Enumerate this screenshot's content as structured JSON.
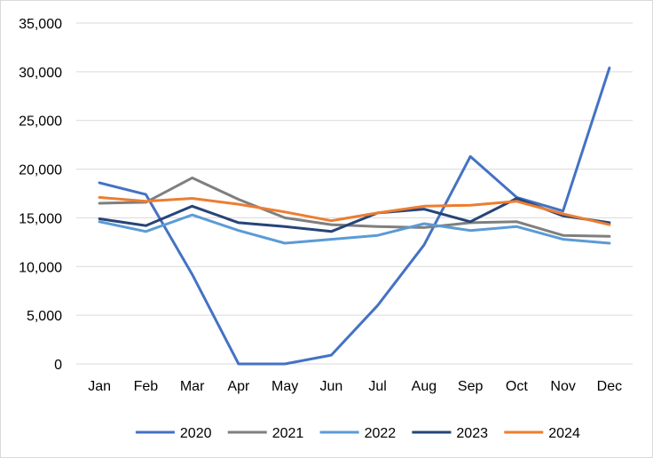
{
  "chart_data": {
    "type": "line",
    "title": "",
    "xlabel": "",
    "ylabel": "",
    "categories": [
      "Jan",
      "Feb",
      "Mar",
      "Apr",
      "May",
      "Jun",
      "Jul",
      "Aug",
      "Sep",
      "Oct",
      "Nov",
      "Dec"
    ],
    "ylim": [
      0,
      35000
    ],
    "yticks": [
      0,
      5000,
      10000,
      15000,
      20000,
      25000,
      30000,
      35000
    ],
    "ytick_labels": [
      "0",
      "5,000",
      "10,000",
      "15,000",
      "20,000",
      "25,000",
      "30,000",
      "35,000"
    ],
    "grid": "horizontal",
    "legend_position": "bottom",
    "series": [
      {
        "name": "2020",
        "color": "#4472c4",
        "values": [
          18600,
          17400,
          9200,
          0,
          0,
          900,
          6000,
          12200,
          21300,
          17100,
          15700,
          30400
        ]
      },
      {
        "name": "2021",
        "color": "#7f7f7f",
        "values": [
          16500,
          16600,
          19100,
          16900,
          15000,
          14300,
          14100,
          14000,
          14500,
          14600,
          13200,
          13100
        ]
      },
      {
        "name": "2022",
        "color": "#5b9bd5",
        "values": [
          14600,
          13600,
          15300,
          13700,
          12400,
          12800,
          13200,
          14400,
          13700,
          14100,
          12800,
          12400
        ]
      },
      {
        "name": "2023",
        "color": "#264478",
        "values": [
          14900,
          14200,
          16200,
          14500,
          14100,
          13600,
          15500,
          15900,
          14600,
          17000,
          15200,
          14500
        ]
      },
      {
        "name": "2024",
        "color": "#ed7d31",
        "values": [
          17100,
          16700,
          17000,
          16400,
          15600,
          14700,
          15500,
          16200,
          16300,
          16700,
          15400,
          14300
        ]
      }
    ]
  }
}
